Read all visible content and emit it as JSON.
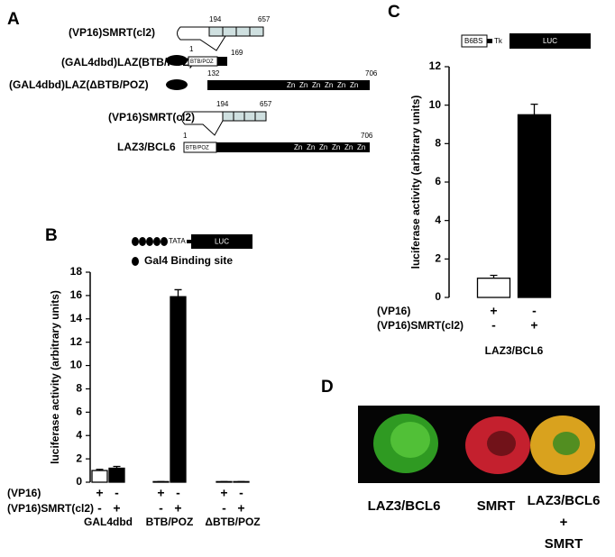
{
  "panels": {
    "A": {
      "label": "A",
      "constructs": [
        {
          "name": "(VP16)SMRT(cl2)",
          "start": "194",
          "end": "657"
        },
        {
          "name": "(GAL4dbd)LAZ(BTB/POZ)",
          "start": "1",
          "end": "169",
          "domain": "BTB/POZ"
        },
        {
          "name": "(GAL4dbd)LAZ(ΔBTB/POZ)",
          "start": "132",
          "end": "706",
          "zn": [
            "Zn",
            "Zn",
            "Zn",
            "Zn",
            "Zn",
            "Zn"
          ]
        },
        {
          "name": "(VP16)SMRT(cl2)",
          "start": "194",
          "end": "657"
        },
        {
          "name": "LAZ3/BCL6",
          "start": "1",
          "end": "706",
          "domain": "BTB/POZ",
          "zn": [
            "Zn",
            "Zn",
            "Zn",
            "Zn",
            "Zn",
            "Zn"
          ]
        }
      ]
    },
    "B": {
      "label": "B",
      "reporter": {
        "element": "TATA",
        "gene": "LUC",
        "legend": "Gal4 Binding site"
      }
    },
    "C": {
      "label": "C",
      "reporter": {
        "site": "B6BS",
        "promoter": "Tk",
        "gene": "LUC"
      }
    },
    "D": {
      "label": "D",
      "captions": [
        "LAZ3/BCL6",
        "SMRT",
        "LAZ3/BCL6",
        "+",
        "SMRT"
      ]
    }
  },
  "chart_data": [
    {
      "type": "bar",
      "y_label": "luciferase activity (arbitrary units)",
      "categories": [
        "GAL4dbd",
        "BTB/POZ",
        "ΔBTB/POZ"
      ],
      "series": [
        {
          "color": "#ffffff",
          "values": [
            1.0,
            0.05,
            0.05
          ],
          "errors": [
            0.1,
            0,
            0
          ]
        },
        {
          "color": "#000000",
          "values": [
            1.2,
            15.9,
            0.05
          ],
          "errors": [
            0.15,
            0.6,
            0
          ]
        }
      ],
      "rows": [
        {
          "label": "(VP16)",
          "signs": [
            "+",
            "-",
            "+",
            "-",
            "+",
            "-"
          ]
        },
        {
          "label": "(VP16)SMRT(cl2)",
          "signs": [
            "-",
            "+",
            "-",
            "+",
            "-",
            "+"
          ]
        }
      ],
      "ylim": [
        0,
        18
      ],
      "yticks": [
        0,
        2,
        4,
        6,
        8,
        10,
        12,
        14,
        16,
        18
      ]
    },
    {
      "type": "bar",
      "y_label": "luciferase activity (arbitrary units)",
      "categories": [
        "LAZ3/BCL6"
      ],
      "series": [
        {
          "color": "#ffffff",
          "values": [
            1.0
          ],
          "errors": [
            0.15
          ]
        },
        {
          "color": "#000000",
          "values": [
            9.5
          ],
          "errors": [
            0.55
          ]
        }
      ],
      "rows": [
        {
          "label": "(VP16)",
          "signs": [
            "+",
            "-"
          ]
        },
        {
          "label": "(VP16)SMRT(cl2)",
          "signs": [
            "-",
            "+"
          ]
        }
      ],
      "ylim": [
        0,
        12
      ],
      "yticks": [
        0,
        2,
        4,
        6,
        8,
        10,
        12
      ]
    }
  ]
}
